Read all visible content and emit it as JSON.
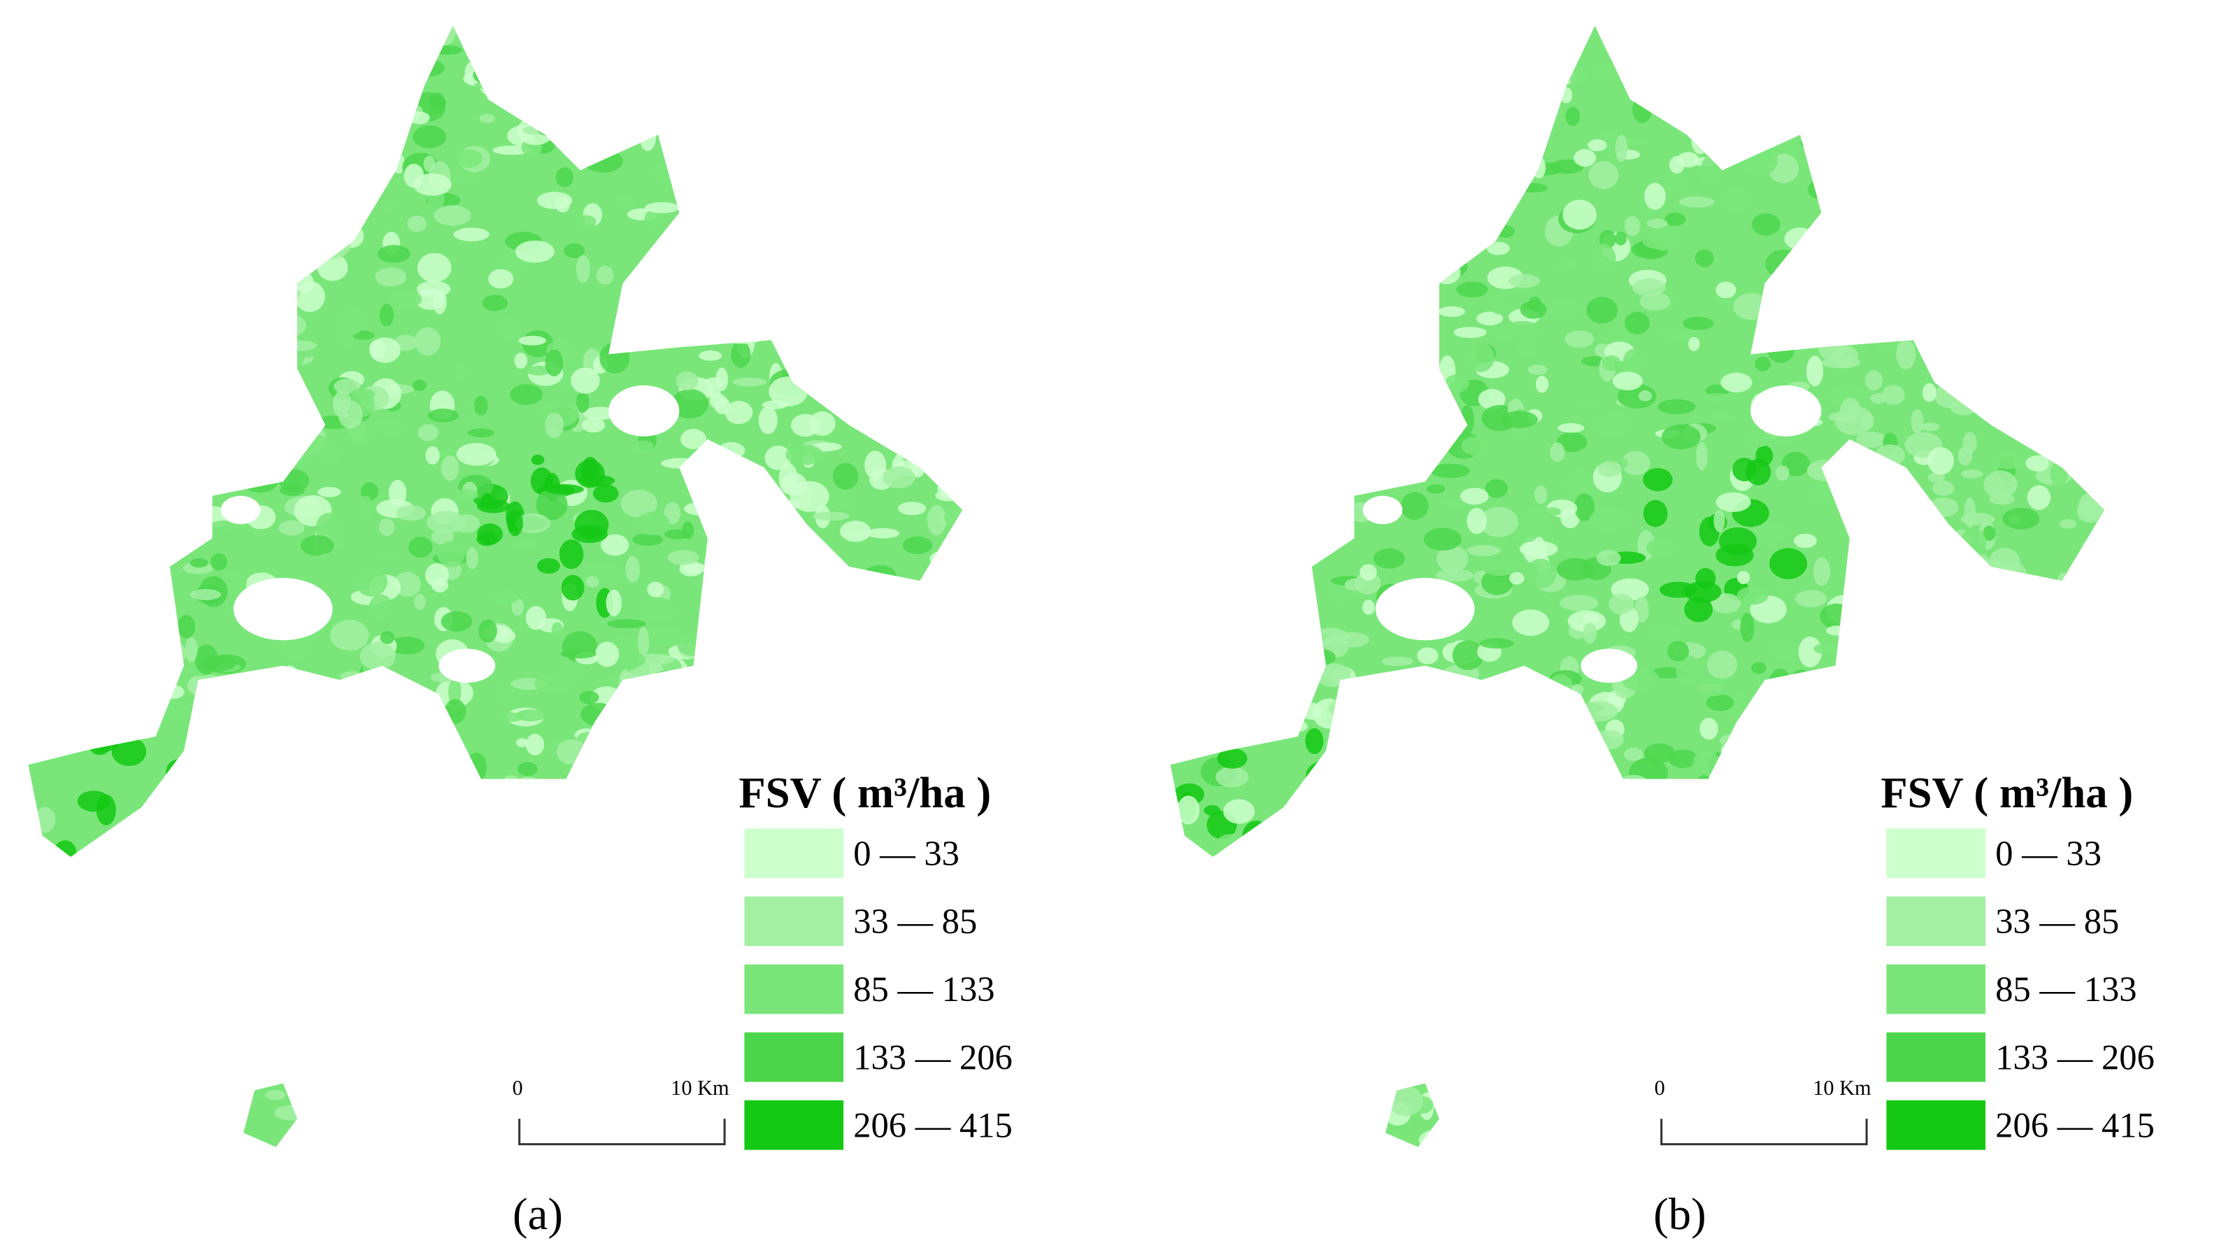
{
  "panels": [
    {
      "label": "(a)",
      "legend": {
        "title": "FSV ( m³/ha )",
        "items": [
          {
            "label": "0 — 33",
            "color": "#ccffcc"
          },
          {
            "label": "33 — 85",
            "color": "#a3f0a3"
          },
          {
            "label": "85 — 133",
            "color": "#7ae67a"
          },
          {
            "label": "133 — 206",
            "color": "#4cd64c"
          },
          {
            "label": "206 — 415",
            "color": "#14c814"
          }
        ]
      },
      "scale_bar": {
        "start": "0",
        "end": "10 Km"
      }
    },
    {
      "label": "(b)",
      "legend": {
        "title": "FSV ( m³/ha )",
        "items": [
          {
            "label": "0 — 33",
            "color": "#ccffcc"
          },
          {
            "label": "33 — 85",
            "color": "#a3f0a3"
          },
          {
            "label": "85 — 133",
            "color": "#7ae67a"
          },
          {
            "label": "133 — 206",
            "color": "#4cd64c"
          },
          {
            "label": "206 — 415",
            "color": "#14c814"
          }
        ]
      },
      "scale_bar": {
        "start": "0",
        "end": "10 Km"
      }
    }
  ]
}
